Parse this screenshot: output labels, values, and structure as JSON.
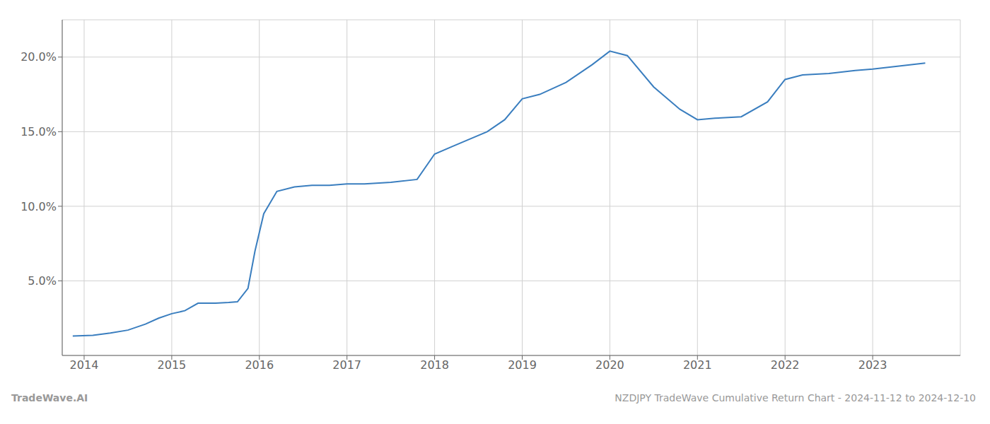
{
  "chart_data": {
    "type": "line",
    "x": [
      2013.87,
      2014.1,
      2014.3,
      2014.5,
      2014.7,
      2014.85,
      2015.0,
      2015.15,
      2015.3,
      2015.5,
      2015.65,
      2015.75,
      2015.87,
      2015.95,
      2016.05,
      2016.2,
      2016.4,
      2016.6,
      2016.8,
      2017.0,
      2017.2,
      2017.5,
      2017.8,
      2018.0,
      2018.2,
      2018.4,
      2018.6,
      2018.8,
      2019.0,
      2019.2,
      2019.5,
      2019.8,
      2020.0,
      2020.2,
      2020.5,
      2020.8,
      2021.0,
      2021.2,
      2021.5,
      2021.8,
      2022.0,
      2022.2,
      2022.5,
      2022.8,
      2023.0,
      2023.3,
      2023.6
    ],
    "values": [
      1.3,
      1.35,
      1.5,
      1.7,
      2.1,
      2.5,
      2.8,
      3.0,
      3.5,
      3.5,
      3.55,
      3.6,
      4.5,
      7.0,
      9.5,
      11.0,
      11.3,
      11.4,
      11.4,
      11.5,
      11.5,
      11.6,
      11.8,
      13.5,
      14.0,
      14.5,
      15.0,
      15.8,
      17.2,
      17.5,
      18.3,
      19.5,
      20.4,
      20.1,
      18.0,
      16.5,
      15.8,
      15.9,
      16.0,
      17.0,
      18.5,
      18.8,
      18.9,
      19.1,
      19.2,
      19.4,
      19.6
    ],
    "color": "#3a7ebf",
    "xlim": [
      2013.75,
      2024.0
    ],
    "xticks": [
      2014,
      2015,
      2016,
      2017,
      2018,
      2019,
      2020,
      2021,
      2022,
      2023
    ],
    "ylim": [
      0.0,
      22.5
    ],
    "yticks": [
      {
        "value": 5.0,
        "label": "5.0%"
      },
      {
        "value": 10.0,
        "label": "10.0%"
      },
      {
        "value": 15.0,
        "label": "15.0%"
      },
      {
        "value": 20.0,
        "label": "20.0%"
      }
    ],
    "grid": true,
    "annotations": [
      "TradeWave.AI",
      "NZDJPY TradeWave Cumulative Return Chart - 2024-11-12 to 2024-12-10"
    ]
  }
}
